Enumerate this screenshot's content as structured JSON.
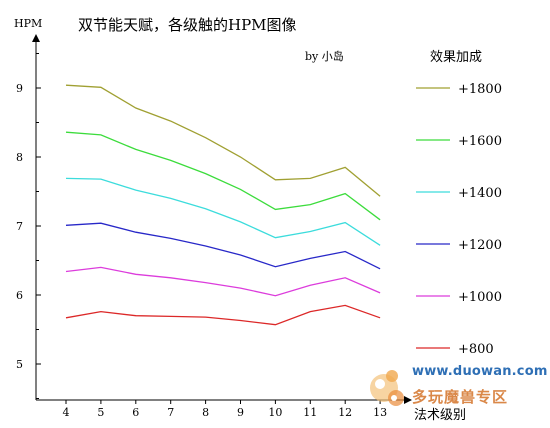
{
  "chart_data": {
    "type": "line",
    "title": "双节能天赋，各级触的HPM图像",
    "subtitle": "by 小岛",
    "xlabel": "法术级别",
    "ylabel": "HPM",
    "legend_title": "效果加成",
    "legend_position": "right",
    "x": [
      4,
      5,
      6,
      7,
      8,
      9,
      10,
      11,
      12,
      13
    ],
    "xlim": [
      3,
      13.2
    ],
    "ylim": [
      4.5,
      9.6
    ],
    "y_ticks": [
      5,
      6,
      7,
      8,
      9
    ],
    "grid": false,
    "series": [
      {
        "name": "+1800",
        "color": "#a0a032",
        "values": [
          9.04,
          9.01,
          8.71,
          8.52,
          8.28,
          8.0,
          7.67,
          7.69,
          7.85,
          7.43
        ]
      },
      {
        "name": "+1600",
        "color": "#3cdc3c",
        "values": [
          8.36,
          8.32,
          8.11,
          7.95,
          7.76,
          7.53,
          7.24,
          7.31,
          7.47,
          7.09
        ]
      },
      {
        "name": "+1400",
        "color": "#3cdcdc",
        "values": [
          7.69,
          7.68,
          7.52,
          7.4,
          7.25,
          7.06,
          6.83,
          6.92,
          7.05,
          6.72
        ]
      },
      {
        "name": "+1200",
        "color": "#2828c8",
        "values": [
          7.01,
          7.04,
          6.91,
          6.82,
          6.71,
          6.58,
          6.41,
          6.53,
          6.63,
          6.38
        ]
      },
      {
        "name": "+1000",
        "color": "#dc3cdc",
        "values": [
          6.34,
          6.4,
          6.3,
          6.25,
          6.18,
          6.1,
          5.99,
          6.14,
          6.25,
          6.03
        ]
      },
      {
        "name": "+800",
        "color": "#dc2828",
        "values": [
          5.67,
          5.76,
          5.7,
          5.69,
          5.68,
          5.63,
          5.57,
          5.76,
          5.85,
          5.67
        ]
      }
    ]
  },
  "watermark": {
    "url": "www.duowan.com",
    "zone": "多玩魔兽专区"
  }
}
